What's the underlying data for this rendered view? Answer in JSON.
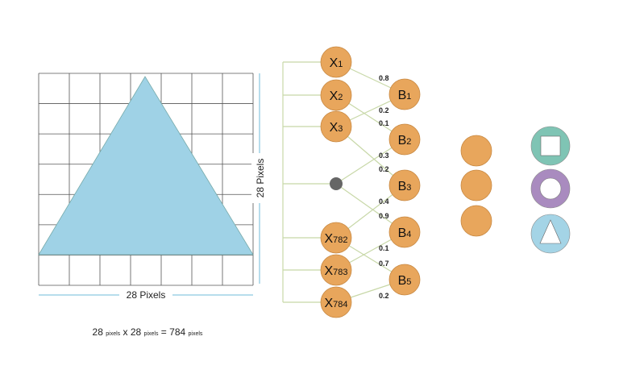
{
  "grid": {
    "columns": 7,
    "rows": 7
  },
  "labels": {
    "width": "28 Pixels",
    "height": "28 Pixels",
    "formula": {
      "a": "28",
      "a_unit": "pixels",
      "x": "x",
      "b": "28",
      "b_unit": "pixels",
      "eq": "=",
      "c": "784",
      "c_unit": "pixels"
    }
  },
  "inputs": [
    {
      "id": "x1",
      "base": "X",
      "sub": "1"
    },
    {
      "id": "x2",
      "base": "X",
      "sub": "2"
    },
    {
      "id": "x3",
      "base": "X",
      "sub": "3"
    },
    {
      "id": "dot",
      "base": "",
      "sub": ""
    },
    {
      "id": "x782",
      "base": "X",
      "sub": "782"
    },
    {
      "id": "x783",
      "base": "X",
      "sub": "783"
    },
    {
      "id": "x784",
      "base": "X",
      "sub": "784"
    }
  ],
  "outputs": [
    {
      "id": "b1",
      "base": "B",
      "sub": "1"
    },
    {
      "id": "b2",
      "base": "B",
      "sub": "2"
    },
    {
      "id": "b3",
      "base": "B",
      "sub": "3"
    },
    {
      "id": "b4",
      "base": "B",
      "sub": "4"
    },
    {
      "id": "b5",
      "base": "B",
      "sub": "5"
    }
  ],
  "edges": [
    {
      "from": "x1",
      "to": "b1",
      "weight": "0.8"
    },
    {
      "from": "x3",
      "to": "b1",
      "weight": "0.2"
    },
    {
      "from": "x2",
      "to": "b2",
      "weight": "0.1"
    },
    {
      "from": "dot",
      "to": "b2",
      "weight": "0.3"
    },
    {
      "from": "x3",
      "to": "b3",
      "weight": "0.2"
    },
    {
      "from": "x782",
      "to": "b3",
      "weight": "0.4"
    },
    {
      "from": "dot",
      "to": "b4",
      "weight": "0.9"
    },
    {
      "from": "x783",
      "to": "b4",
      "weight": "0.1"
    },
    {
      "from": "x782",
      "to": "b5",
      "weight": "0.7"
    },
    {
      "from": "x784",
      "to": "b5",
      "weight": "0.2"
    }
  ],
  "hidden_nodes": 3,
  "classes": [
    {
      "shape": "square",
      "color": "#7fc4b4"
    },
    {
      "shape": "ring",
      "color": "#a98bbf"
    },
    {
      "shape": "triangle",
      "color": "#a4d4e6"
    }
  ],
  "colors": {
    "node": "#e8a65c",
    "node_stroke": "#c98a44",
    "triangle": "#9fd2e6",
    "edge": "#c8d8a8",
    "guide": "#9fd2e6",
    "dot": "#666666"
  }
}
